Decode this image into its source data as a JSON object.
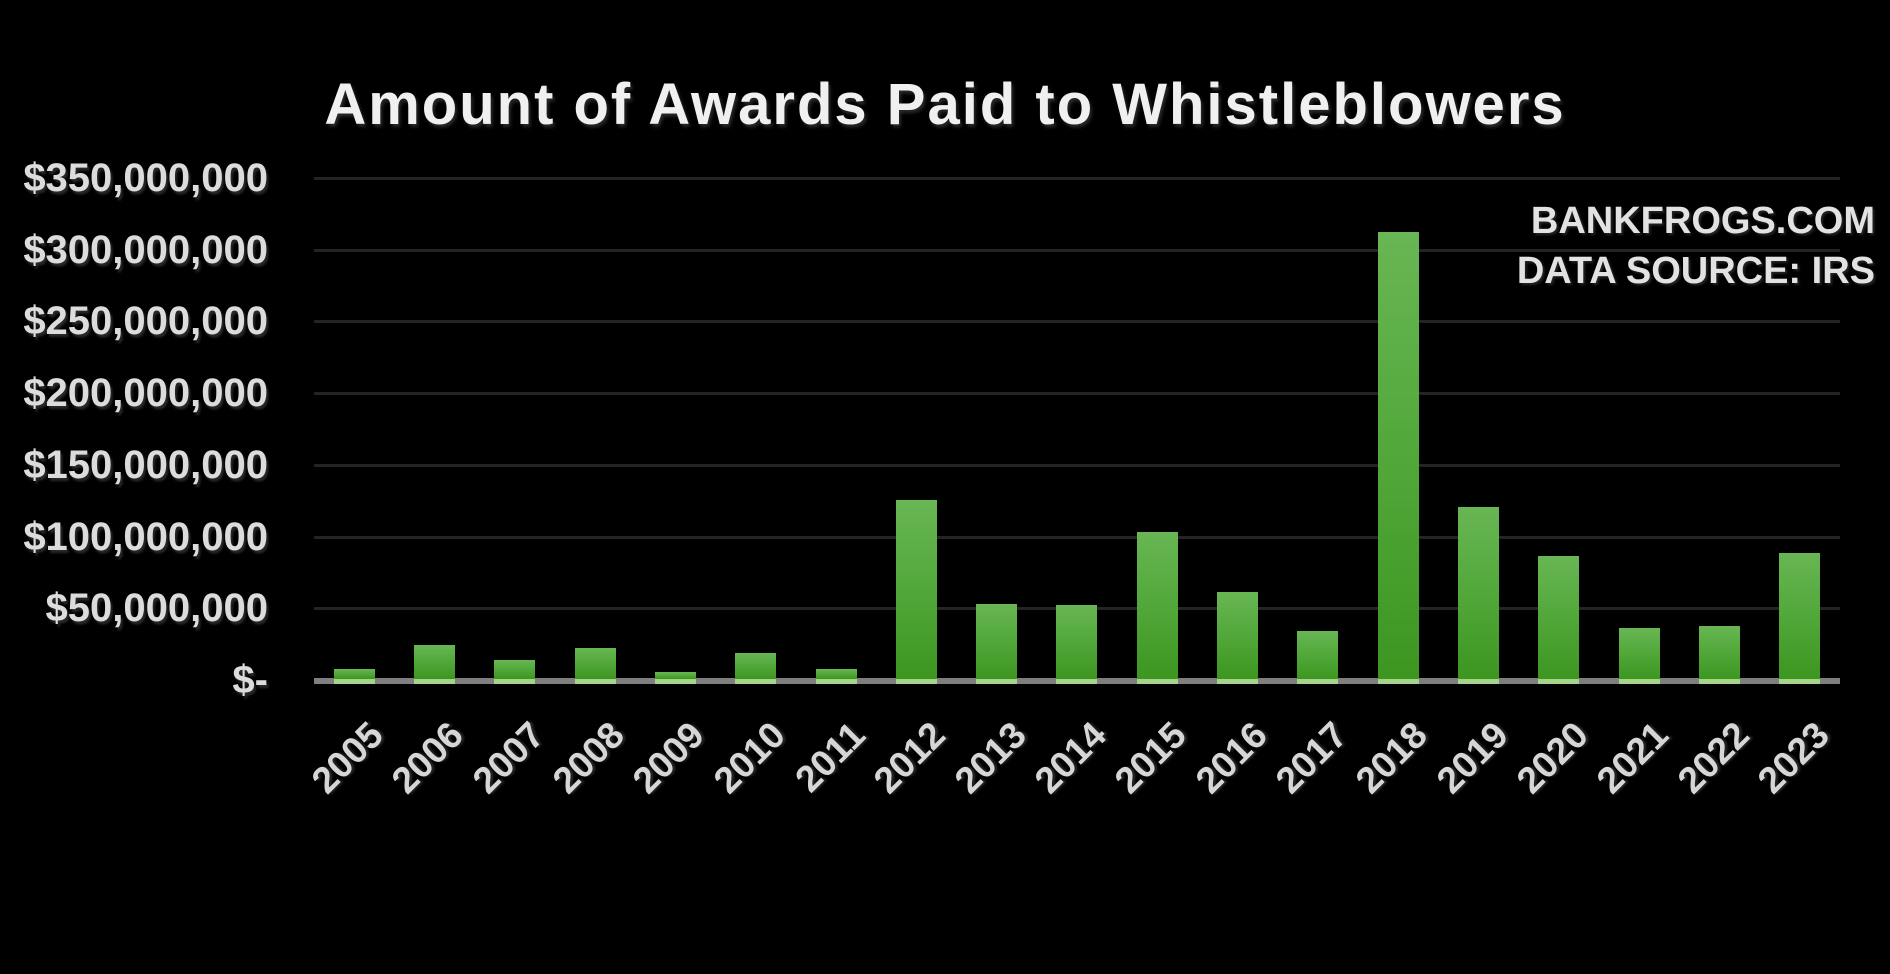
{
  "title": "Amount of Awards Paid to Whistleblowers",
  "watermark": {
    "site": "BANKFROGS.COM",
    "source": "DATA SOURCE: IRS"
  },
  "chart_data": {
    "type": "bar",
    "title": "Amount of Awards Paid to Whistleblowers",
    "categories": [
      "2005",
      "2006",
      "2007",
      "2008",
      "2009",
      "2010",
      "2011",
      "2012",
      "2013",
      "2014",
      "2015",
      "2016",
      "2017",
      "2018",
      "2019",
      "2020",
      "2021",
      "2022",
      "2023"
    ],
    "values": [
      7600000,
      24200000,
      13600000,
      22400000,
      5900000,
      18700000,
      8000000,
      125400000,
      53100000,
      52300000,
      103500000,
      61400000,
      34000000,
      312200000,
      120300000,
      86600000,
      36100000,
      37800000,
      88800000
    ],
    "values_unit": "USD",
    "xlabel": "",
    "ylabel": "",
    "ylim": [
      0,
      350000000
    ],
    "y_ticks": [
      {
        "value": 350000000,
        "label": "$350,000,000"
      },
      {
        "value": 300000000,
        "label": "$300,000,000"
      },
      {
        "value": 250000000,
        "label": "$250,000,000"
      },
      {
        "value": 200000000,
        "label": "$200,000,000"
      },
      {
        "value": 150000000,
        "label": "$150,000,000"
      },
      {
        "value": 100000000,
        "label": "$100,000,000"
      },
      {
        "value": 50000000,
        "label": "$50,000,000"
      },
      {
        "value": 0,
        "label": "$-"
      }
    ],
    "grid": "horizontal-on",
    "legend": "none",
    "annotations": [
      "BANKFROGS.COM",
      "DATA SOURCE: IRS"
    ],
    "colors": {
      "background": "#000000",
      "bar_gradient_top": "#68b654",
      "bar_gradient_bottom": "#3c9620",
      "bar_base_strip": "#a6d48a",
      "axis_line": "#7f7f7f",
      "gridline": "#242424",
      "tick_text": "#dcdcdc",
      "title_text": "#f0f0f0"
    }
  }
}
